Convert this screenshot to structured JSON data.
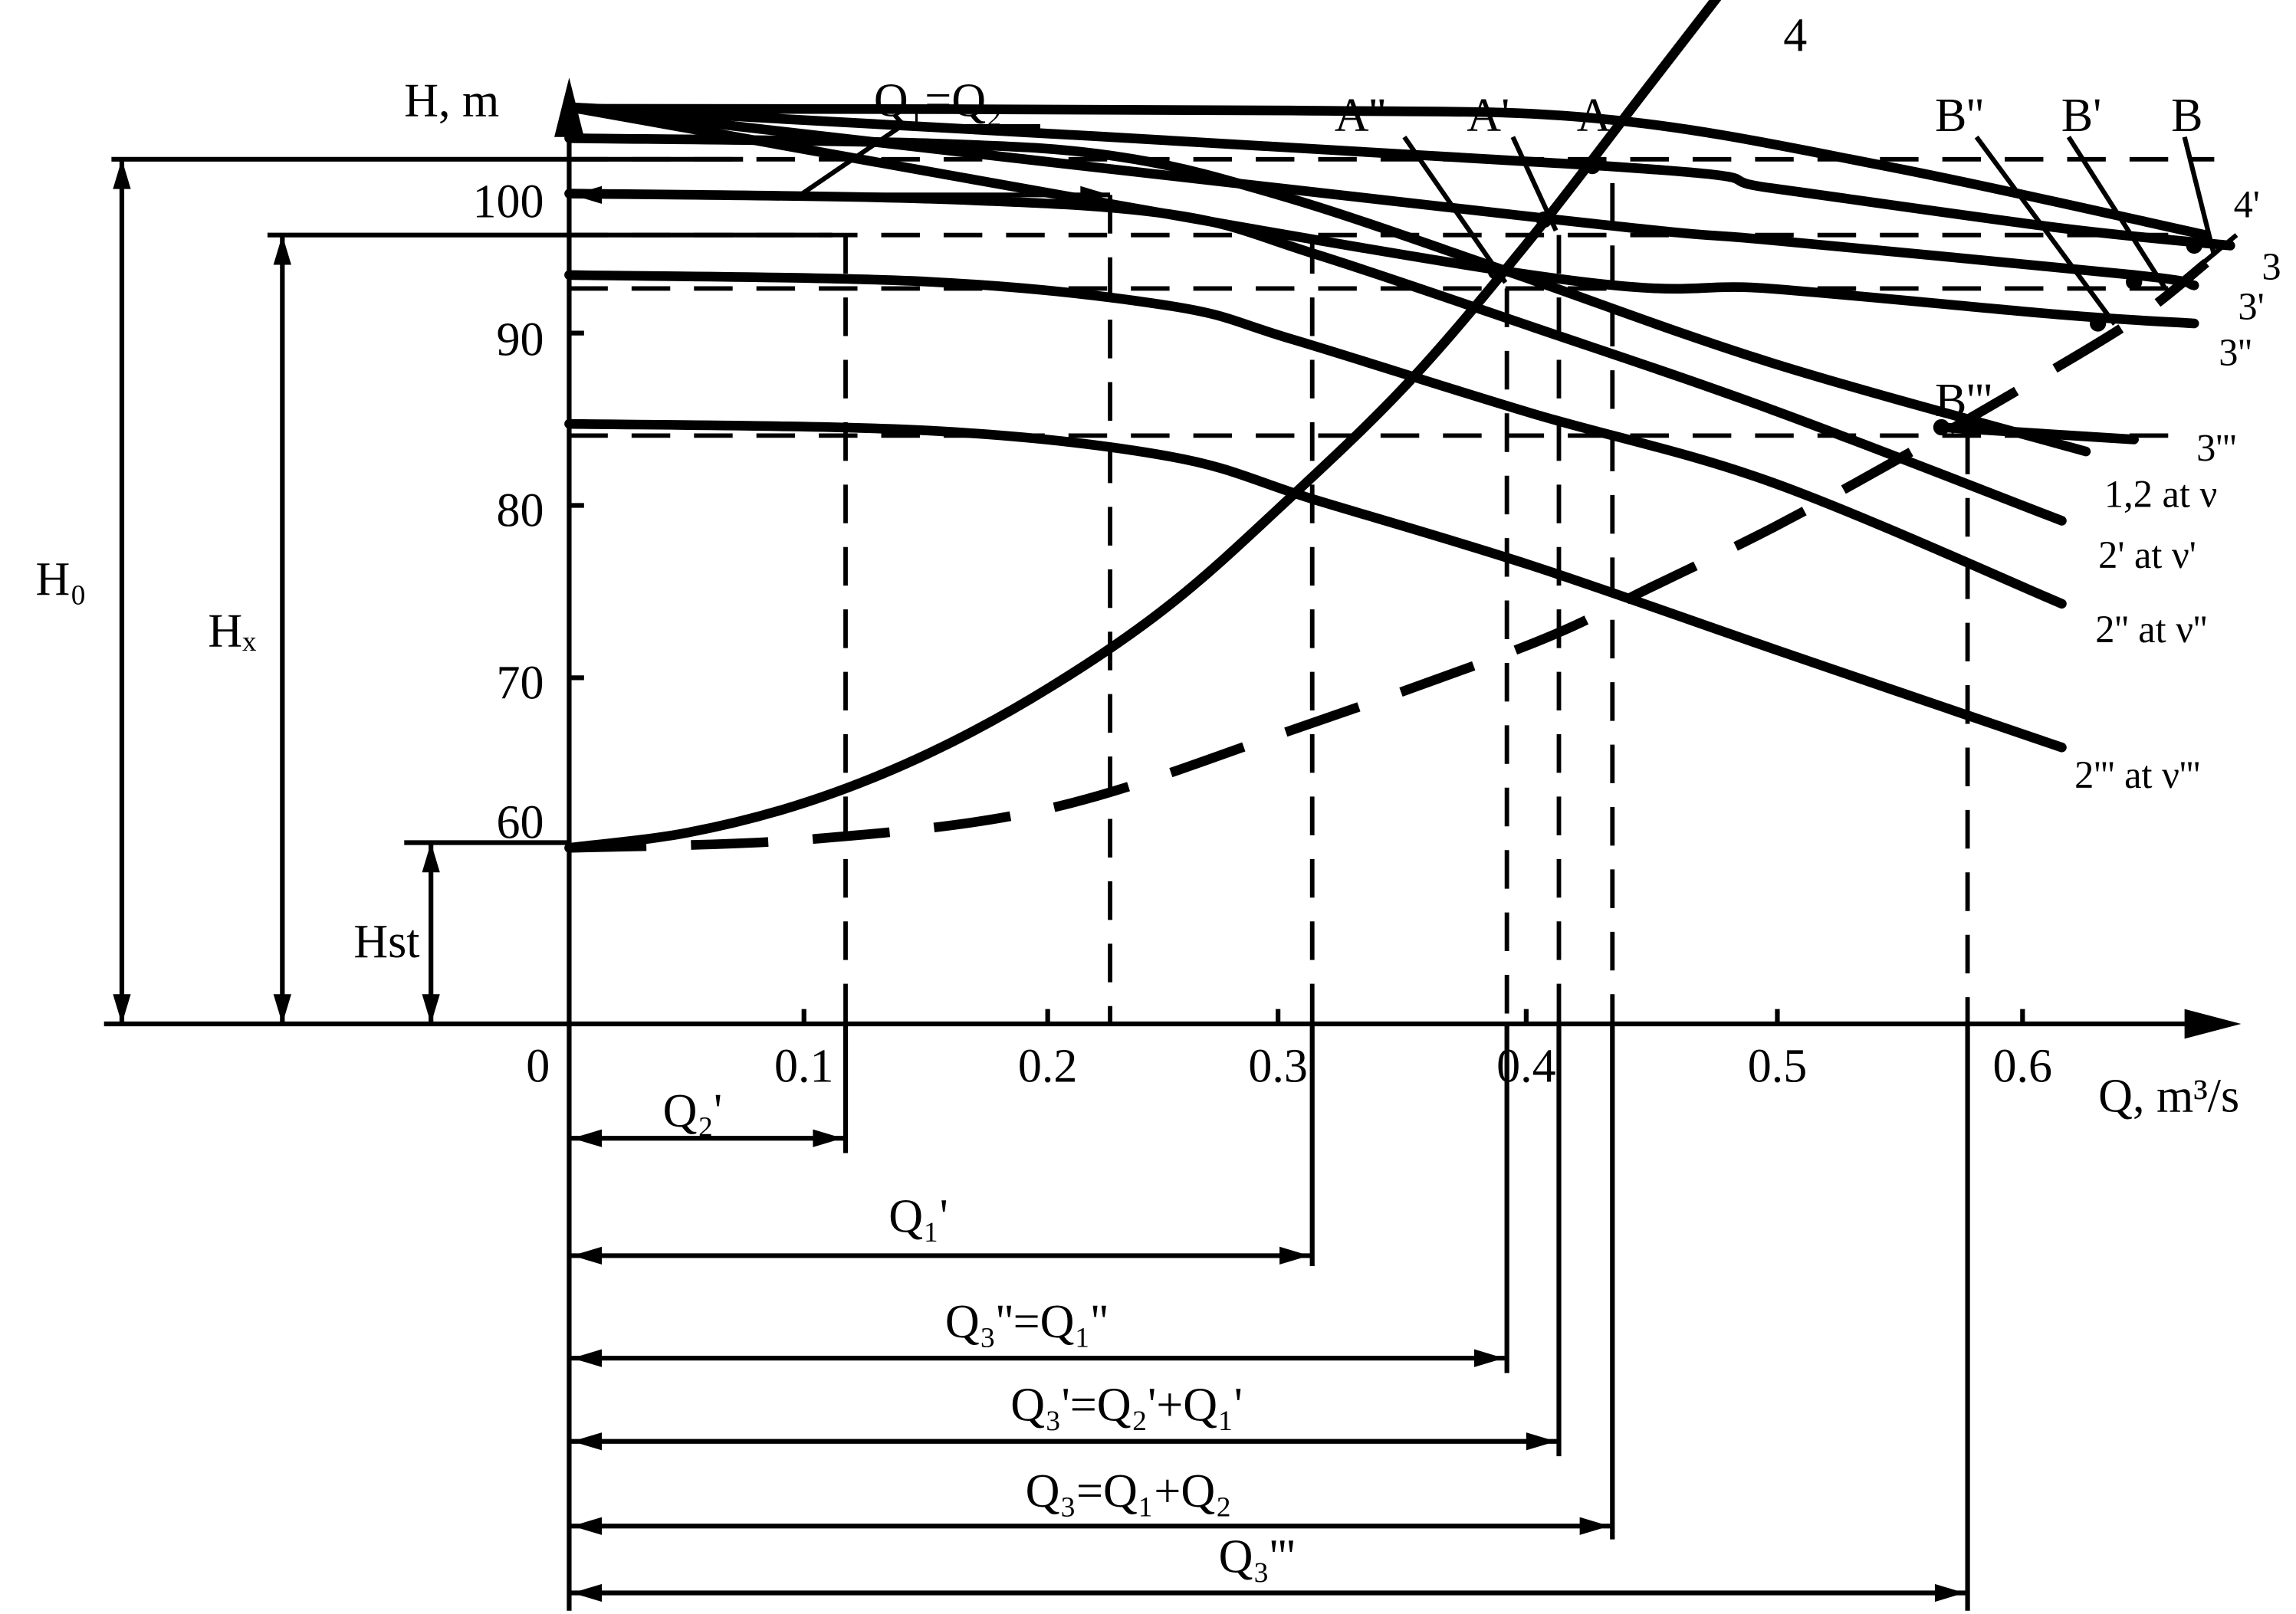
{
  "chart_data": {
    "type": "line",
    "title": "",
    "xlabel": "Q, m³/s",
    "ylabel": "H, m",
    "xlim": [
      0,
      0.68
    ],
    "ylim": [
      32.5,
      113
    ],
    "x_ticks": [
      0.1,
      0.2,
      0.3,
      0.4,
      0.5,
      0.6
    ],
    "x_tick_labels": [
      "0.1",
      "0.2",
      "0.3",
      "0.4",
      "0.5",
      "0.6"
    ],
    "y_ticks": [
      60,
      70,
      80,
      90,
      100
    ],
    "y_tick_labels": [
      "60",
      "70",
      "80",
      "90",
      "100"
    ],
    "origin_label": "0",
    "grid": false,
    "series": [
      {
        "name": "1,2 at ν",
        "style": "solid",
        "x": [
          0,
          0.15,
          0.23,
          0.3,
          0.39,
          0.5,
          0.63
        ],
        "y": [
          100.7,
          100.4,
          99.6,
          97.2,
          93.0,
          87.7,
          82.6
        ]
      },
      {
        "name": "2' at ν'",
        "style": "solid",
        "x": [
          0,
          0.15,
          0.25,
          0.31,
          0.4,
          0.5,
          0.62
        ],
        "y": [
          97.5,
          97.2,
          96.3,
          94.0,
          89.8,
          85.0,
          78.6
        ]
      },
      {
        "name": "2'' at ν''",
        "style": "solid",
        "x": [
          0,
          0.15,
          0.25,
          0.3,
          0.4,
          0.5,
          0.62
        ],
        "y": [
          92.8,
          92.4,
          91.0,
          89.1,
          84.8,
          80.8,
          73.8
        ]
      },
      {
        "name": "2''' at ν'''",
        "style": "solid",
        "x": [
          0,
          0.15,
          0.25,
          0.31,
          0.4,
          0.5,
          0.62
        ],
        "y": [
          84.2,
          83.8,
          82.3,
          79.8,
          76.0,
          71.2,
          65.5
        ]
      },
      {
        "name": "3''",
        "style": "solid",
        "x": [
          0,
          0.39,
          0.5,
          0.62,
          0.675
        ],
        "y": [
          102.5,
          93.0,
          92.0,
          90.5,
          90.0
        ]
      },
      {
        "name": "3'",
        "style": "solid",
        "x": [
          0,
          0.41,
          0.5,
          0.65,
          0.675
        ],
        "y": [
          102.5,
          96.0,
          94.8,
          92.8,
          92.2
        ]
      },
      {
        "name": "3",
        "style": "solid",
        "x": [
          0,
          0.43,
          0.5,
          0.62,
          0.69
        ],
        "y": [
          102.5,
          99.1,
          97.8,
          95.5,
          94.5
        ]
      },
      {
        "name": "4'",
        "style": "solid",
        "x": [
          0,
          0.3,
          0.43,
          0.55,
          0.68
        ],
        "y": [
          102.4,
          102.3,
          101.8,
          99.0,
          95.1
        ]
      },
      {
        "name": "3'''",
        "style": "solid",
        "x": [
          0.57,
          0.65
        ],
        "y": [
          84.0,
          83.3
        ]
      },
      {
        "name": "4",
        "style": "solid",
        "x": [
          0,
          0.05,
          0.1,
          0.15,
          0.2,
          0.25,
          0.3,
          0.35,
          0.4,
          0.45,
          0.5
        ],
        "y": [
          59.7,
          60.6,
          62.4,
          65.2,
          69.0,
          73.8,
          80.0,
          86.8,
          95.0,
          104.0,
          113.0
        ]
      },
      {
        "name": "4 (dashed)",
        "style": "dashed",
        "x": [
          0,
          0.1,
          0.2,
          0.3,
          0.4,
          0.45,
          0.5,
          0.55,
          0.6,
          0.65,
          0.68
        ],
        "y": [
          59.7,
          60.2,
          62.0,
          66.5,
          71.5,
          74.8,
          78.2,
          82.0,
          86.0,
          90.2,
          93.5
        ]
      }
    ],
    "points": [
      {
        "label": "A''",
        "x": 0.385,
        "y": 93.0
      },
      {
        "label": "A'",
        "x": 0.405,
        "y": 96.0
      },
      {
        "label": "A",
        "x": 0.425,
        "y": 99.1
      },
      {
        "label": "B''",
        "x": 0.635,
        "y": 90.0
      },
      {
        "label": "B'",
        "x": 0.65,
        "y": 92.4
      },
      {
        "label": "B",
        "x": 0.675,
        "y": 94.5
      },
      {
        "label": "B'''",
        "x": 0.57,
        "y": 84.0
      }
    ],
    "head_labels": [
      "H₀",
      "Hₓ",
      "Hst"
    ],
    "flow_labels": [
      "Q₁=Q₂",
      "Q₂'",
      "Q₁'",
      "Q₃''=Q₁''",
      "Q₃'=Q₂'+Q₁'",
      "Q₃=Q₁+Q₂",
      "Q₃'''"
    ]
  }
}
